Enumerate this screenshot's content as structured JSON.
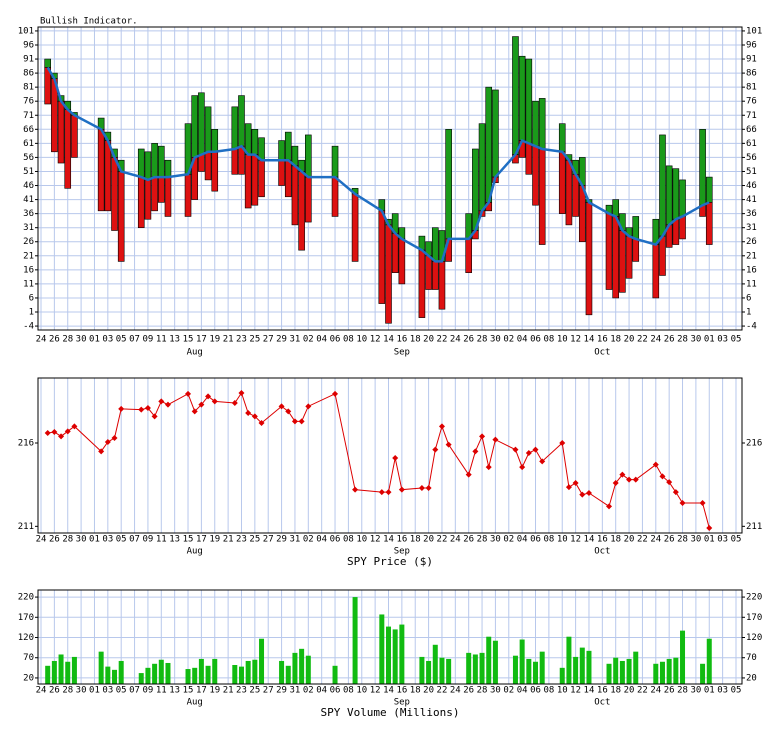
{
  "chart_data": [
    {
      "type": "bullish",
      "title": "Bullish Indicator.",
      "x": [
        1,
        2,
        3,
        4,
        5,
        9,
        10,
        11,
        12,
        15,
        16,
        17,
        18,
        19,
        22,
        23,
        24,
        25,
        26,
        29,
        30,
        31,
        32,
        33,
        36,
        37,
        38,
        39,
        40,
        44,
        47,
        51,
        52,
        53,
        54,
        57,
        58,
        59,
        60,
        61,
        64,
        65,
        66,
        67,
        68,
        71,
        72,
        73,
        74,
        75,
        78,
        79,
        80,
        81,
        82,
        85,
        86,
        87,
        88,
        89,
        92,
        93,
        94,
        95,
        96,
        99,
        100
      ],
      "high": [
        91,
        86,
        78,
        76,
        72,
        70,
        65,
        59,
        55,
        59,
        58,
        61,
        60,
        55,
        68,
        78,
        79,
        74,
        66,
        74,
        78,
        68,
        66,
        63,
        62,
        65,
        60,
        55,
        64,
        60,
        45,
        41,
        34,
        36,
        31,
        28,
        26,
        31,
        30,
        66,
        36,
        59,
        68,
        81,
        80,
        99,
        92,
        91,
        76,
        77,
        68,
        57,
        55,
        56,
        41,
        39,
        41,
        36,
        31,
        35,
        34,
        64,
        53,
        52,
        48,
        66,
        49
      ],
      "line": [
        88,
        84,
        76,
        73,
        71,
        66,
        62,
        56,
        51,
        49,
        48,
        49,
        49,
        49,
        50,
        56,
        57,
        58,
        58,
        59,
        60,
        57,
        57,
        55,
        55,
        55,
        53,
        51,
        49,
        49,
        43,
        37,
        32,
        29,
        27,
        23,
        21,
        19,
        19,
        27,
        27,
        30,
        37,
        40,
        49,
        57,
        62,
        61,
        60,
        59,
        58,
        55,
        50,
        46,
        40,
        36,
        35,
        30,
        28,
        27,
        25,
        28,
        32,
        34,
        35,
        39,
        40
      ],
      "low": [
        75,
        58,
        54,
        45,
        56,
        37,
        37,
        30,
        19,
        31,
        34,
        37,
        40,
        35,
        35,
        41,
        51,
        48,
        44,
        50,
        50,
        38,
        39,
        42,
        46,
        42,
        32,
        23,
        33,
        35,
        19,
        4,
        -3,
        15,
        11,
        -1,
        9,
        9,
        2,
        19,
        15,
        27,
        35,
        37,
        47,
        54,
        56,
        50,
        39,
        25,
        36,
        32,
        35,
        26,
        0,
        9,
        6,
        8,
        13,
        19,
        6,
        14,
        24,
        25,
        27,
        35,
        25
      ],
      "up_color": "#1a9a1a",
      "down_color": "#dd1111",
      "line_color": "#1f6fc4",
      "xlim": [
        -0.45,
        104.9
      ],
      "ylim": [
        -5.4,
        102.4
      ],
      "yticks": [
        101,
        96,
        91,
        86,
        81,
        76,
        71,
        66,
        61,
        56,
        51,
        46,
        41,
        36,
        31,
        26,
        21,
        16,
        11,
        6,
        1,
        -4
      ],
      "xticks": [
        {
          "value": 0,
          "label": "24"
        },
        {
          "value": 2,
          "label": "26"
        },
        {
          "value": 4,
          "label": "28"
        },
        {
          "value": 6,
          "label": "30"
        },
        {
          "value": 8,
          "label": "01"
        },
        {
          "value": 10,
          "label": "03"
        },
        {
          "value": 12,
          "label": "05"
        },
        {
          "value": 14,
          "label": "07"
        },
        {
          "value": 16,
          "label": "09"
        },
        {
          "value": 18,
          "label": "11"
        },
        {
          "value": 20,
          "label": "13"
        },
        {
          "value": 22,
          "label": "15"
        },
        {
          "value": 24,
          "label": "17"
        },
        {
          "value": 26,
          "label": "19"
        },
        {
          "value": 28,
          "label": "21"
        },
        {
          "value": 30,
          "label": "23"
        },
        {
          "value": 32,
          "label": "25"
        },
        {
          "value": 34,
          "label": "27"
        },
        {
          "value": 36,
          "label": "29"
        },
        {
          "value": 38,
          "label": "31"
        },
        {
          "value": 40,
          "label": "02"
        },
        {
          "value": 42,
          "label": "04"
        },
        {
          "value": 44,
          "label": "06"
        },
        {
          "value": 46,
          "label": "08"
        },
        {
          "value": 48,
          "label": "10"
        },
        {
          "value": 50,
          "label": "12"
        },
        {
          "value": 52,
          "label": "14"
        },
        {
          "value": 54,
          "label": "16"
        },
        {
          "value": 56,
          "label": "18"
        },
        {
          "value": 58,
          "label": "20"
        },
        {
          "value": 60,
          "label": "22"
        },
        {
          "value": 62,
          "label": "24"
        },
        {
          "value": 64,
          "label": "26"
        },
        {
          "value": 66,
          "label": "28"
        },
        {
          "value": 68,
          "label": "30"
        },
        {
          "value": 70,
          "label": "02"
        },
        {
          "value": 72,
          "label": "04"
        },
        {
          "value": 74,
          "label": "06"
        },
        {
          "value": 76,
          "label": "08"
        },
        {
          "value": 78,
          "label": "10"
        },
        {
          "value": 80,
          "label": "12"
        },
        {
          "value": 82,
          "label": "14"
        },
        {
          "value": 84,
          "label": "16"
        },
        {
          "value": 86,
          "label": "18"
        },
        {
          "value": 88,
          "label": "20"
        },
        {
          "value": 90,
          "label": "22"
        },
        {
          "value": 92,
          "label": "24"
        },
        {
          "value": 94,
          "label": "26"
        },
        {
          "value": 96,
          "label": "28"
        },
        {
          "value": 98,
          "label": "30"
        },
        {
          "value": 100,
          "label": "01"
        },
        {
          "value": 102,
          "label": "03"
        },
        {
          "value": 104,
          "label": "05"
        }
      ],
      "month_labels": [
        {
          "value": 23,
          "label": "Aug"
        },
        {
          "value": 54,
          "label": "Sep"
        },
        {
          "value": 84,
          "label": "Oct"
        }
      ],
      "grid": "both"
    },
    {
      "type": "line",
      "xlabel": "SPY Price ($)",
      "values": [
        216.6,
        216.66,
        216.4,
        216.7,
        217.0,
        215.5,
        216.06,
        216.3,
        218.05,
        218.0,
        218.1,
        217.6,
        218.5,
        218.3,
        218.95,
        217.9,
        218.3,
        218.8,
        218.5,
        218.4,
        219.0,
        217.8,
        217.6,
        217.2,
        218.2,
        217.9,
        217.3,
        217.3,
        218.2,
        218.95,
        213.2,
        213.05,
        213.05,
        215.1,
        213.2,
        213.3,
        213.3,
        215.6,
        217.0,
        215.9,
        214.1,
        215.5,
        216.4,
        214.55,
        216.2,
        215.6,
        214.55,
        215.4,
        215.6,
        214.9,
        216.0,
        213.35,
        213.6,
        212.9,
        213.0,
        212.2,
        213.6,
        214.1,
        213.8,
        213.8,
        214.7,
        214.0,
        213.65,
        213.05,
        212.4,
        212.4,
        210.9
      ],
      "color": "#dd0000",
      "ylim": [
        210.6,
        219.9
      ],
      "yticks": [
        211,
        216
      ],
      "grid": "x"
    },
    {
      "type": "bar",
      "xlabel": "SPY Volume (Millions)",
      "values": [
        50,
        62,
        78,
        60,
        72,
        85,
        48,
        40,
        62,
        32,
        45,
        55,
        65,
        57,
        42,
        45,
        67,
        50,
        67,
        52,
        48,
        62,
        65,
        117,
        62,
        50,
        82,
        92,
        75,
        50,
        220,
        177,
        147,
        140,
        152,
        72,
        62,
        102,
        70,
        67,
        82,
        78,
        82,
        122,
        112,
        75,
        115,
        67,
        60,
        85,
        45,
        122,
        72,
        95,
        87,
        55,
        70,
        62,
        67,
        85,
        55,
        60,
        67,
        70,
        137,
        55,
        117
      ],
      "color": "#11bb11",
      "ylim": [
        5,
        237.5
      ],
      "yticks": [
        20,
        70,
        120,
        170,
        220
      ],
      "grid": "both"
    }
  ]
}
